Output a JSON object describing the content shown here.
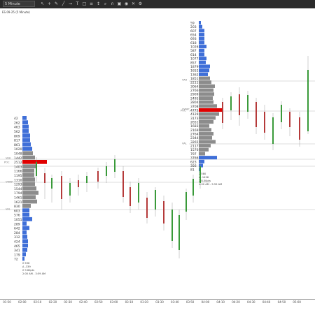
{
  "toolbar": {
    "timeframe": "5 Minute",
    "icons": [
      "cursor-icon",
      "crosshair-icon",
      "pencil-icon",
      "line-icon",
      "ray-icon",
      "text-icon",
      "shape-icon",
      "fib-icon",
      "measure-icon",
      "zoom-icon",
      "magnet-icon",
      "lock-icon",
      "eye-icon",
      "trash-icon",
      "settings-icon"
    ]
  },
  "chart": {
    "title": "ES 09-25 (5 Minute)"
  },
  "xaxis": {
    "ticks": [
      "01:50",
      "02:00",
      "02:10",
      "02:20",
      "02:30",
      "02:40",
      "02:50",
      "03:00",
      "03:10",
      "03:20",
      "03:30",
      "03:40",
      "03:50",
      "04:00",
      "04:10",
      "04:20",
      "04:30",
      "04:40",
      "04:50",
      "05:00"
    ]
  },
  "profiles": [
    {
      "values": [
        "42",
        "262",
        "463",
        "562",
        "809",
        "817",
        "861",
        "1020",
        "1048",
        "1442",
        "2512",
        "1403",
        "1166",
        "1195",
        "1310",
        "1293",
        "1544",
        "1794",
        "1461",
        "1621",
        "830",
        "603",
        "576",
        "1051",
        "289",
        "642",
        "284",
        "312",
        "424",
        "465",
        "341",
        "179",
        "72"
      ],
      "widths": [
        6,
        8,
        9,
        9,
        11,
        11,
        12,
        14,
        15,
        18,
        35,
        19,
        17,
        17,
        18,
        18,
        20,
        23,
        19,
        21,
        12,
        10,
        10,
        14,
        6,
        10,
        6,
        7,
        8,
        8,
        7,
        5,
        3
      ],
      "blue": [
        1,
        1,
        1,
        1,
        1,
        1,
        1,
        1,
        0,
        0,
        0,
        0,
        0,
        0,
        0,
        0,
        0,
        0,
        0,
        0,
        0,
        1,
        1,
        1,
        1,
        1,
        1,
        1,
        1,
        1,
        1,
        1,
        1
      ],
      "poc_index": 10,
      "labels": {
        "vah": "VAH",
        "poc": "POC",
        "val": "VAL",
        "vwap": "VWAP"
      },
      "info": [
        "Σ 596",
        "Δ -339",
        "Σ 9.60pts",
        "2:00 AM - 3:59 AM"
      ]
    },
    {
      "values": [
        "59",
        "203",
        "607",
        "654",
        "693",
        "618",
        "1026",
        "587",
        "614",
        "1077",
        "857",
        "1879",
        "1652",
        "1362",
        "1851",
        "2211",
        "3064",
        "2766",
        "2909",
        "2495",
        "2804",
        "3708",
        "4775",
        "4129",
        "3173",
        "2651",
        "1683",
        "2169",
        "2764",
        "2344",
        "3265",
        "2117",
        "1576",
        "797",
        "3766",
        "623",
        "356",
        "81"
      ],
      "widths": [
        3,
        5,
        8,
        8,
        8,
        8,
        11,
        8,
        8,
        11,
        10,
        16,
        15,
        13,
        16,
        18,
        23,
        21,
        22,
        20,
        21,
        26,
        35,
        29,
        24,
        21,
        15,
        18,
        21,
        19,
        24,
        17,
        14,
        9,
        26,
        8,
        6,
        3
      ],
      "blue": [
        1,
        1,
        1,
        1,
        1,
        1,
        1,
        1,
        1,
        1,
        1,
        1,
        1,
        1,
        0,
        0,
        0,
        0,
        0,
        0,
        0,
        0,
        0,
        0,
        0,
        0,
        0,
        0,
        0,
        0,
        0,
        0,
        0,
        0,
        1,
        1,
        1,
        1
      ],
      "poc_index": 22,
      "labels": {
        "vah": "VAH",
        "poc": "POC",
        "val": "VAL",
        "vwap": "VWAP"
      },
      "info": [
        "Σ 580",
        "Δ -1496",
        "Σ 8.50pts",
        "4:00 AM - 5:59 AM"
      ]
    }
  ],
  "colors": {
    "up": "#3a9a3a",
    "down": "#b53a3a",
    "profile_gray": "#8c8c8c",
    "profile_blue": "#3f6fd8",
    "poc": "#e00000",
    "level_line": "#bbbbbb"
  }
}
